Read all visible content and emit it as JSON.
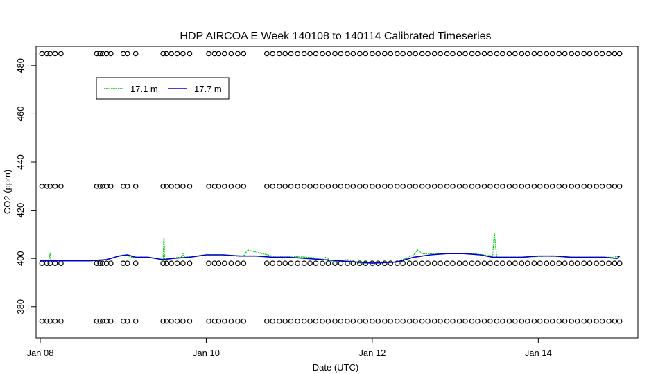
{
  "chart_data": {
    "type": "line",
    "title": "HDP AIRCOA E  Week 140108 to 140114  Calibrated Timeseries",
    "xlabel": "Date (UTC)",
    "ylabel": "CO2 (ppm)",
    "xlim": [
      -0.05,
      7.2
    ],
    "ylim": [
      367,
      488
    ],
    "x_ticks": [
      {
        "value": 0,
        "label": "Jan 08"
      },
      {
        "value": 2,
        "label": "Jan 10"
      },
      {
        "value": 4,
        "label": "Jan 12"
      },
      {
        "value": 6,
        "label": "Jan 14"
      }
    ],
    "y_ticks": [
      380,
      400,
      420,
      440,
      460,
      480
    ],
    "legend": {
      "position": "top-left"
    },
    "series": [
      {
        "name": "17.1 m",
        "color": "#00cc00",
        "style": "dotted",
        "points": [
          [
            0,
            399
          ],
          [
            0.1,
            399
          ],
          [
            0.12,
            402
          ],
          [
            0.13,
            399
          ],
          [
            0.5,
            399
          ],
          [
            0.8,
            399.5
          ],
          [
            1.0,
            401.5
          ],
          [
            1.1,
            400.5
          ],
          [
            1.3,
            400.5
          ],
          [
            1.48,
            399.5
          ],
          [
            1.49,
            409
          ],
          [
            1.5,
            400
          ],
          [
            1.7,
            400.5
          ],
          [
            1.72,
            402
          ],
          [
            1.74,
            400.5
          ],
          [
            2.0,
            401.5
          ],
          [
            2.2,
            401.5
          ],
          [
            2.45,
            401
          ],
          [
            2.5,
            403.5
          ],
          [
            2.8,
            401
          ],
          [
            3.0,
            401
          ],
          [
            3.4,
            400
          ],
          [
            3.45,
            400.5
          ],
          [
            3.5,
            398.5
          ],
          [
            3.7,
            399.5
          ],
          [
            3.85,
            398
          ],
          [
            4.0,
            398
          ],
          [
            4.3,
            398.5
          ],
          [
            4.5,
            401.5
          ],
          [
            4.55,
            403.5
          ],
          [
            4.6,
            402
          ],
          [
            4.9,
            402
          ],
          [
            5.2,
            402
          ],
          [
            5.45,
            401
          ],
          [
            5.47,
            410.5
          ],
          [
            5.5,
            400.5
          ],
          [
            5.8,
            400.5
          ],
          [
            6.1,
            401
          ],
          [
            6.4,
            400.5
          ],
          [
            6.7,
            400.5
          ],
          [
            6.9,
            400.5
          ],
          [
            6.98,
            401
          ]
        ]
      },
      {
        "name": "17.7 m",
        "color": "#0000cc",
        "style": "solid",
        "points": [
          [
            0,
            399
          ],
          [
            0.3,
            399
          ],
          [
            0.6,
            399
          ],
          [
            0.8,
            399.5
          ],
          [
            0.95,
            401
          ],
          [
            1.05,
            401.5
          ],
          [
            1.15,
            400.5
          ],
          [
            1.3,
            400.5
          ],
          [
            1.48,
            399.5
          ],
          [
            1.6,
            400
          ],
          [
            1.8,
            400.5
          ],
          [
            2.0,
            401.5
          ],
          [
            2.2,
            401.5
          ],
          [
            2.4,
            401
          ],
          [
            2.6,
            401
          ],
          [
            2.8,
            400.5
          ],
          [
            3.0,
            400.5
          ],
          [
            3.2,
            400
          ],
          [
            3.4,
            399.5
          ],
          [
            3.6,
            399
          ],
          [
            3.8,
            398.5
          ],
          [
            4.0,
            398
          ],
          [
            4.3,
            398.5
          ],
          [
            4.5,
            400.5
          ],
          [
            4.7,
            401.5
          ],
          [
            4.9,
            402
          ],
          [
            5.1,
            402
          ],
          [
            5.3,
            401.5
          ],
          [
            5.45,
            400.5
          ],
          [
            5.6,
            400.5
          ],
          [
            5.8,
            400.5
          ],
          [
            6.0,
            401
          ],
          [
            6.2,
            401
          ],
          [
            6.4,
            400.5
          ],
          [
            6.6,
            400.5
          ],
          [
            6.8,
            400.5
          ],
          [
            6.95,
            400
          ],
          [
            6.98,
            401
          ]
        ]
      }
    ],
    "calibration_levels": [
      374,
      398,
      430,
      485
    ],
    "calibration_times": [
      0.02,
      0.08,
      0.12,
      0.18,
      0.25,
      0.68,
      0.72,
      0.75,
      0.8,
      0.85,
      1.0,
      1.05,
      1.15,
      1.48,
      1.52,
      1.58,
      1.65,
      1.72,
      1.8,
      2.03,
      2.1,
      2.15,
      2.22,
      2.3,
      2.38,
      2.45,
      2.73,
      2.8,
      2.88,
      2.95,
      3.02,
      3.1,
      3.18,
      3.25,
      3.32,
      3.4,
      3.47,
      3.55,
      3.62,
      3.7,
      3.77,
      3.85,
      3.92,
      4.0,
      4.07,
      4.15,
      4.22,
      4.3,
      4.37,
      4.45,
      4.52,
      4.6,
      4.67,
      4.75,
      4.82,
      4.9,
      4.97,
      5.05,
      5.12,
      5.2,
      5.27,
      5.35,
      5.42,
      5.5,
      5.57,
      5.65,
      5.72,
      5.8,
      5.87,
      5.95,
      6.02,
      6.1,
      6.17,
      6.25,
      6.32,
      6.4,
      6.47,
      6.55,
      6.62,
      6.7,
      6.77,
      6.85,
      6.92,
      6.98
    ]
  }
}
